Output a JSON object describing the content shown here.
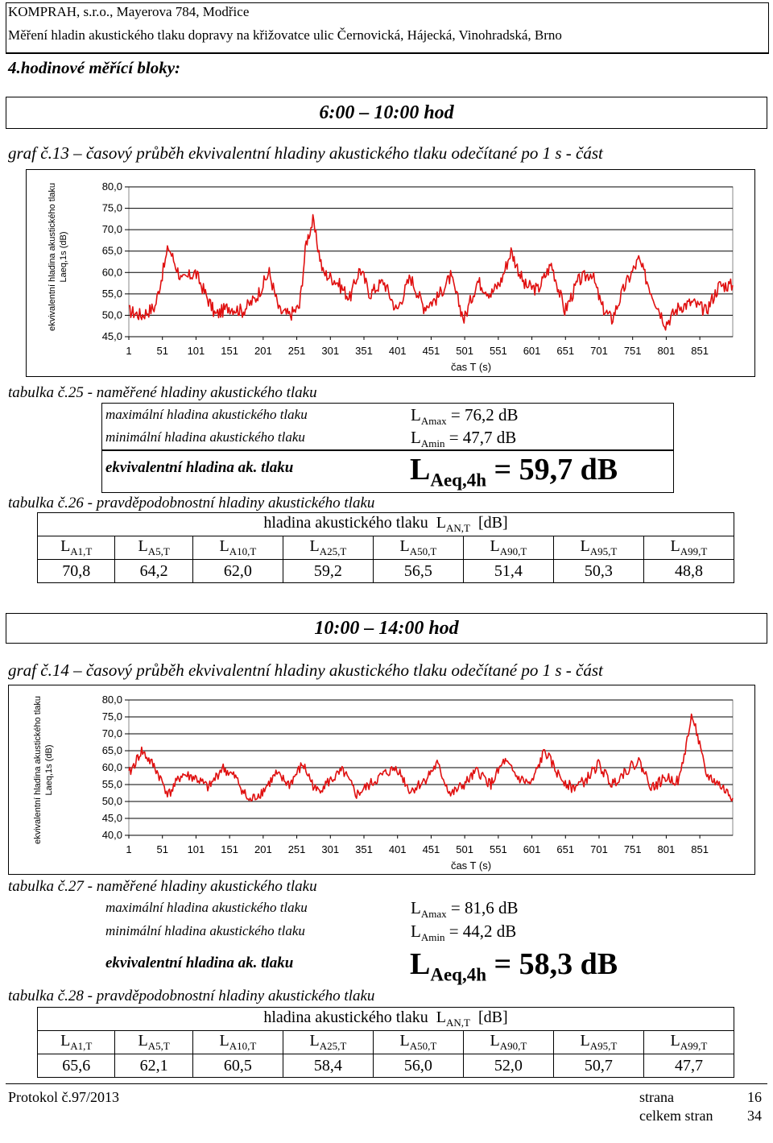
{
  "header": {
    "company": "KOMPRAH, s.r.o., Mayerova 784, Modřice",
    "subject": "Měření hladin akustického tlaku dopravy na křižovatce ulic Černovická, Hájecká, Vinohradská, Brno"
  },
  "intro": "4.hodinové měřící bloky:",
  "blocks": [
    {
      "period": "6:00 – 10:00 hod",
      "graph_title": "graf č.13 – časový průběh ekvivalentní hladiny akustického tlaku odečítané po 1 s - část",
      "levels_caption": "tabulka č.25 - naměřené hladiny akustického tlaku",
      "max_label": "maximální hladina akustického tlaku",
      "max_prefix": "L",
      "max_sub": "Amax",
      "max_value": " = 76,2 dB",
      "min_label": "minimální hladina akustického tlaku",
      "min_prefix": "L",
      "min_sub": "Amin",
      "min_value": " = 47,7 dB",
      "eq_label": "ekvivalentní hladina ak. tlaku",
      "eq_prefix": "L",
      "eq_sub": "Aeq,4h",
      "eq_value": " = 59,7 dB",
      "prob_caption": "tabulka č.26 - pravděpodobnostní hladiny akustického tlaku",
      "prob_header": "hladina akustického tlaku  L",
      "prob_header_sub": "AN,T",
      "prob_header_unit": "  [dB]",
      "prob_cols": [
        "A1,T",
        "A5,T",
        "A10,T",
        "A25,T",
        "A50,T",
        "A90,T",
        "A95,T",
        "A99,T"
      ],
      "prob_values": [
        "70,8",
        "64,2",
        "62,0",
        "59,2",
        "56,5",
        "51,4",
        "50,3",
        "48,8"
      ]
    },
    {
      "period": "10:00 – 14:00 hod",
      "graph_title": "graf č.14 – časový průběh ekvivalentní hladiny akustického tlaku odečítané po 1 s - část",
      "levels_caption": "tabulka č.27 - naměřené hladiny akustického tlaku",
      "max_label": "maximální hladina akustického tlaku",
      "max_prefix": "L",
      "max_sub": "Amax",
      "max_value": " = 81,6 dB",
      "min_label": "minimální hladina akustického tlaku",
      "min_prefix": "L",
      "min_sub": "Amin",
      "min_value": " = 44,2 dB",
      "eq_label": "ekvivalentní hladina ak. tlaku",
      "eq_prefix": "L",
      "eq_sub": "Aeq,4h",
      "eq_value": " = 58,3 dB",
      "prob_caption": "tabulka č.28 - pravděpodobnostní hladiny akustického tlaku",
      "prob_header": "hladina akustického tlaku  L",
      "prob_header_sub": "AN,T",
      "prob_header_unit": "  [dB]",
      "prob_cols": [
        "A1,T",
        "A5,T",
        "A10,T",
        "A25,T",
        "A50,T",
        "A90,T",
        "A95,T",
        "A99,T"
      ],
      "prob_values": [
        "65,6",
        "62,1",
        "60,5",
        "58,4",
        "56,0",
        "52,0",
        "50,7",
        "47,7"
      ]
    }
  ],
  "prob_col_prefix": "L",
  "colors": {
    "series": "#e01010",
    "grid": "#000000"
  },
  "chart_data": [
    {
      "type": "line",
      "ylabel": "ekvivalentní hladina akustického tlaku Laeq,1s (dB)",
      "xlabel": "čas T (s)",
      "ylim": [
        45,
        80
      ],
      "yticks": [
        "80,0",
        "75,0",
        "70,0",
        "65,0",
        "60,0",
        "55,0",
        "50,0",
        "45,0"
      ],
      "xticks": [
        "1",
        "51",
        "101",
        "151",
        "201",
        "251",
        "301",
        "351",
        "401",
        "451",
        "501",
        "551",
        "601",
        "651",
        "701",
        "751",
        "801",
        "851"
      ],
      "xlim": [
        1,
        900
      ],
      "grid": "horizontal",
      "series": [
        {
          "x": [
            1,
            20,
            40,
            60,
            80,
            100,
            115,
            130,
            150,
            170,
            190,
            210,
            225,
            240,
            255,
            265,
            275,
            290,
            310,
            330,
            345,
            360,
            380,
            400,
            420,
            440,
            460,
            480,
            500,
            520,
            540,
            555,
            570,
            590,
            610,
            630,
            650,
            670,
            690,
            705,
            720,
            740,
            760,
            780,
            800,
            820,
            840,
            860,
            880,
            900
          ],
          "values": [
            51,
            50,
            52,
            66,
            58,
            60,
            55,
            50,
            52,
            51,
            54,
            60,
            51,
            50,
            52,
            67,
            72,
            60,
            58,
            54,
            61,
            55,
            58,
            51,
            59,
            52,
            54,
            59,
            49,
            58,
            55,
            58,
            65,
            57,
            56,
            62,
            51,
            58,
            60,
            52,
            49,
            57,
            63,
            55,
            48,
            52,
            53,
            51,
            57,
            57
          ]
        }
      ]
    },
    {
      "type": "line",
      "ylabel": "ekvivalentní hladina akustického tlaku Laeq,1s (dB)",
      "xlabel": "čas T (s)",
      "ylim": [
        40,
        80
      ],
      "yticks": [
        "80,0",
        "75,0",
        "70,0",
        "65,0",
        "60,0",
        "55,0",
        "50,0",
        "45,0",
        "40,0"
      ],
      "xticks": [
        "1",
        "51",
        "101",
        "151",
        "201",
        "251",
        "301",
        "351",
        "401",
        "451",
        "501",
        "551",
        "601",
        "651",
        "701",
        "751",
        "801",
        "851"
      ],
      "xlim": [
        1,
        900
      ],
      "grid": "horizontal",
      "series": [
        {
          "x": [
            1,
            20,
            40,
            60,
            80,
            100,
            120,
            140,
            160,
            180,
            200,
            220,
            240,
            260,
            280,
            300,
            320,
            340,
            360,
            380,
            400,
            420,
            440,
            460,
            480,
            500,
            520,
            540,
            560,
            580,
            600,
            620,
            640,
            660,
            680,
            700,
            720,
            740,
            760,
            780,
            800,
            820,
            840,
            860,
            880,
            900
          ],
          "values": [
            58,
            65,
            60,
            52,
            58,
            57,
            54,
            60,
            57,
            50,
            53,
            58,
            55,
            61,
            53,
            56,
            59,
            52,
            55,
            58,
            60,
            53,
            56,
            61,
            52,
            55,
            59,
            55,
            62,
            57,
            55,
            65,
            58,
            54,
            56,
            61,
            55,
            59,
            62,
            54,
            57,
            56,
            76,
            58,
            55,
            51
          ]
        }
      ]
    }
  ],
  "footer": {
    "protocol": "Protokol č.97/2013",
    "page_label": "strana",
    "page_number": "16",
    "total_label": "celkem stran",
    "total_number": "34"
  }
}
